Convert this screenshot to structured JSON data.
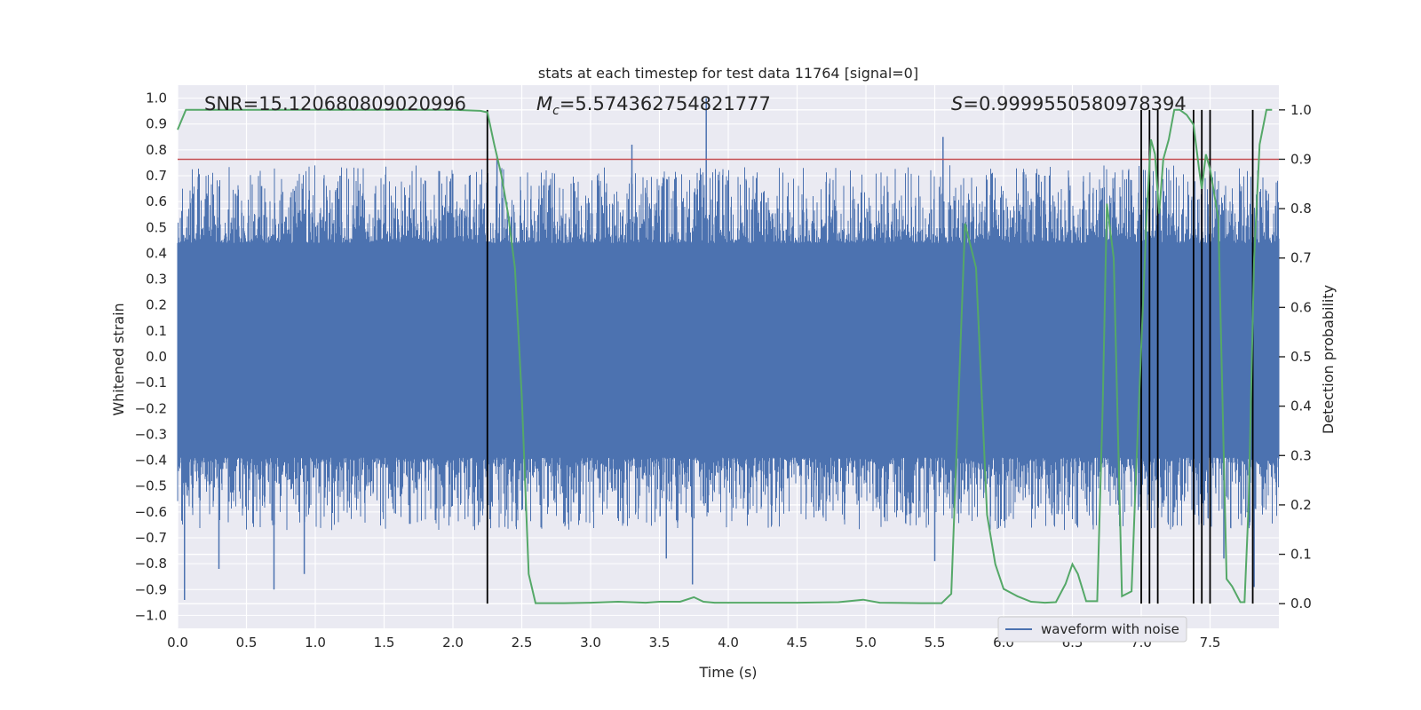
{
  "chart_data": {
    "type": "line",
    "title": "stats at each timestep for test data 11764 [signal=0]",
    "xlabel": "Time (s)",
    "ylabel_left": "Whitened strain",
    "ylabel_right": "Detection probability",
    "xlim": [
      0.0,
      8.0
    ],
    "ylim_left": [
      -1.05,
      1.05
    ],
    "ylim_right": [
      -0.05,
      1.05
    ],
    "x_ticks": [
      "0.0",
      "0.5",
      "1.0",
      "1.5",
      "2.0",
      "2.5",
      "3.0",
      "3.5",
      "4.0",
      "4.5",
      "5.0",
      "5.5",
      "6.0",
      "6.5",
      "7.0",
      "7.5"
    ],
    "x_tick_values": [
      0.0,
      0.5,
      1.0,
      1.5,
      2.0,
      2.5,
      3.0,
      3.5,
      4.0,
      4.5,
      5.0,
      5.5,
      6.0,
      6.5,
      7.0,
      7.5
    ],
    "y_left_ticks": [
      "1.0",
      "0.9",
      "0.8",
      "0.7",
      "0.6",
      "0.5",
      "0.4",
      "0.3",
      "0.2",
      "0.1",
      "0.0",
      "−0.1",
      "−0.2",
      "−0.3",
      "−0.4",
      "−0.5",
      "−0.6",
      "−0.7",
      "−0.8",
      "−0.9",
      "−1.0"
    ],
    "y_left_tick_values": [
      1.0,
      0.9,
      0.8,
      0.7,
      0.6,
      0.5,
      0.4,
      0.3,
      0.2,
      0.1,
      0.0,
      -0.1,
      -0.2,
      -0.3,
      -0.4,
      -0.5,
      -0.6,
      -0.7,
      -0.8,
      -0.9,
      -1.0
    ],
    "y_right_ticks": [
      "1.0",
      "0.9",
      "0.8",
      "0.7",
      "0.6",
      "0.5",
      "0.4",
      "0.3",
      "0.2",
      "0.1",
      "0.0"
    ],
    "y_right_tick_values": [
      1.0,
      0.9,
      0.8,
      0.7,
      0.6,
      0.5,
      0.4,
      0.3,
      0.2,
      0.1,
      0.0
    ],
    "annotations": {
      "snr": "SNR=15.120680809020996",
      "mc_symbol": "M",
      "mc_subscript": "c",
      "mc_value": "=5.574362754821777",
      "s_symbol": "S",
      "s_value": "=0.9999550580978394"
    },
    "threshold": {
      "value": 0.9,
      "axis": "right",
      "color": "#c44e52"
    },
    "vlines": [
      2.25,
      7.0,
      7.06,
      7.12,
      7.38,
      7.44,
      7.5,
      7.81
    ],
    "vline_range_right": [
      0.0,
      1.0
    ],
    "legend": {
      "label": "waveform with noise",
      "position": "lower-right"
    },
    "series": [
      {
        "name": "waveform with noise",
        "axis": "left",
        "color": "#4c72b0",
        "style": "dense-noise",
        "sample_rate": 2048,
        "envelope_typical": [
          -0.35,
          0.4
        ],
        "max": 1.0,
        "min": -0.94,
        "spikes": [
          {
            "x": 0.05,
            "y": -0.94
          },
          {
            "x": 0.3,
            "y": -0.82
          },
          {
            "x": 0.7,
            "y": -0.9
          },
          {
            "x": 0.92,
            "y": -0.84
          },
          {
            "x": 0.42,
            "y": 0.63
          },
          {
            "x": 0.61,
            "y": 0.66
          },
          {
            "x": 1.18,
            "y": 0.7
          },
          {
            "x": 1.8,
            "y": 0.68
          },
          {
            "x": 2.12,
            "y": 0.7
          },
          {
            "x": 2.32,
            "y": 0.78
          },
          {
            "x": 3.3,
            "y": 0.82
          },
          {
            "x": 3.55,
            "y": -0.78
          },
          {
            "x": 3.74,
            "y": -0.88
          },
          {
            "x": 3.84,
            "y": 1.0
          },
          {
            "x": 5.5,
            "y": -0.79
          },
          {
            "x": 5.56,
            "y": 0.85
          },
          {
            "x": 6.3,
            "y": 0.7
          },
          {
            "x": 7.6,
            "y": -0.78
          },
          {
            "x": 7.82,
            "y": -0.89
          }
        ]
      },
      {
        "name": "detection probability",
        "axis": "right",
        "color": "#55a868",
        "x": [
          0.0,
          0.06,
          0.5,
          1.0,
          1.5,
          2.0,
          2.2,
          2.25,
          2.3,
          2.35,
          2.4,
          2.45,
          2.5,
          2.55,
          2.6,
          2.8,
          3.0,
          3.2,
          3.4,
          3.5,
          3.65,
          3.75,
          3.82,
          3.9,
          4.2,
          4.5,
          4.8,
          4.98,
          5.1,
          5.4,
          5.55,
          5.62,
          5.72,
          5.8,
          5.88,
          5.94,
          6.0,
          6.1,
          6.2,
          6.3,
          6.38,
          6.45,
          6.5,
          6.54,
          6.6,
          6.68,
          6.72,
          6.75,
          6.8,
          6.86,
          6.93,
          6.96,
          7.0,
          7.04,
          7.07,
          7.1,
          7.13,
          7.16,
          7.2,
          7.24,
          7.28,
          7.33,
          7.38,
          7.42,
          7.44,
          7.47,
          7.5,
          7.56,
          7.62,
          7.66,
          7.72,
          7.75,
          7.78,
          7.82,
          7.86,
          7.91,
          7.95
        ],
        "y": [
          0.96,
          1.0,
          1.0,
          1.0,
          1.0,
          1.0,
          0.998,
          0.995,
          0.93,
          0.87,
          0.79,
          0.68,
          0.42,
          0.06,
          0.001,
          0.001,
          0.002,
          0.004,
          0.002,
          0.004,
          0.004,
          0.013,
          0.004,
          0.002,
          0.002,
          0.002,
          0.003,
          0.008,
          0.002,
          0.001,
          0.001,
          0.02,
          0.77,
          0.68,
          0.18,
          0.08,
          0.03,
          0.015,
          0.004,
          0.002,
          0.003,
          0.04,
          0.08,
          0.06,
          0.005,
          0.005,
          0.4,
          0.81,
          0.7,
          0.015,
          0.025,
          0.25,
          0.52,
          0.79,
          0.94,
          0.91,
          0.79,
          0.9,
          0.94,
          1.0,
          1.0,
          0.99,
          0.97,
          0.88,
          0.84,
          0.91,
          0.88,
          0.78,
          0.05,
          0.035,
          0.003,
          0.003,
          0.2,
          0.7,
          0.93,
          1.0,
          1.0
        ]
      }
    ]
  }
}
